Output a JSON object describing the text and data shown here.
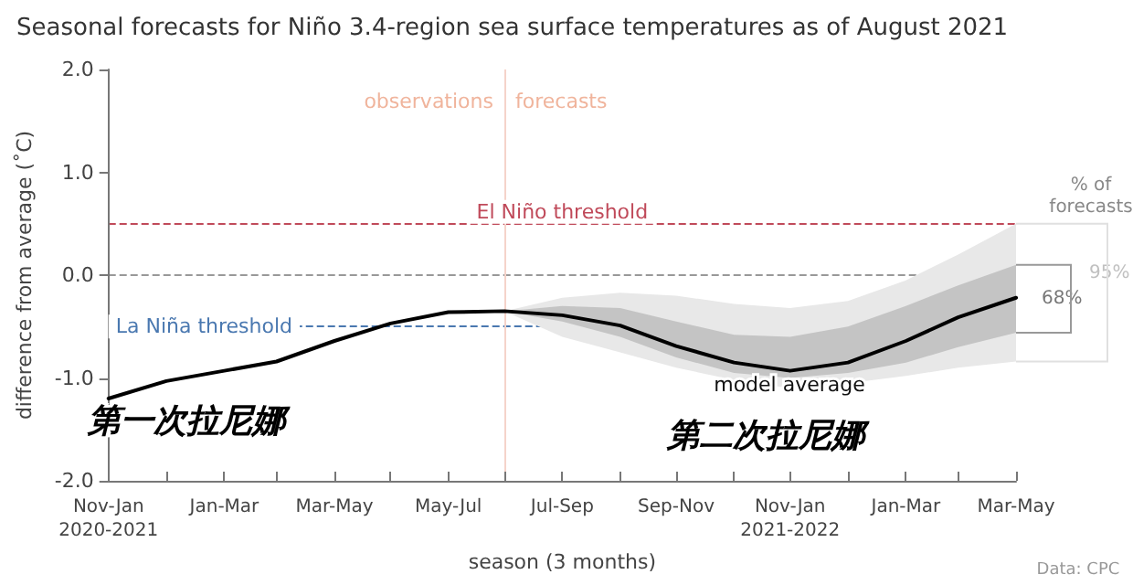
{
  "chart_data": {
    "type": "line",
    "title": "Seasonal forecasts for Niño 3.4-region sea surface temperatures as of August 2021",
    "xlabel": "season (3 months)",
    "ylabel": "difference from average (˚C)",
    "x": [
      "2020-12",
      "2021-01",
      "2021-02",
      "2021-03",
      "2021-04",
      "2021-05",
      "2021-06",
      "2021-07",
      "2021-08",
      "2021-09",
      "2021-10",
      "2021-11",
      "2021-12",
      "2022-01",
      "2022-02",
      "2022-03",
      "2022-04"
    ],
    "xlim": [
      "2020-12",
      "2022-04"
    ],
    "xticks": [
      {
        "value": "2020-12",
        "label": "Nov-Jan\n2020-2021"
      },
      {
        "value": "2021-01",
        "label": null
      },
      {
        "value": "2021-02",
        "label": "Jan-Mar"
      },
      {
        "value": "2021-03",
        "label": null
      },
      {
        "value": "2021-04",
        "label": "Mar-May"
      },
      {
        "value": "2021-05",
        "label": null
      },
      {
        "value": "2021-06",
        "label": "May-Jul"
      },
      {
        "value": "2021-07",
        "label": null
      },
      {
        "value": "2021-08",
        "label": "Jul-Sep"
      },
      {
        "value": "2021-09",
        "label": null
      },
      {
        "value": "2021-10",
        "label": "Sep-Nov"
      },
      {
        "value": "2021-11",
        "label": null
      },
      {
        "value": "2021-12",
        "label": "Nov-Jan\n2021-2022"
      },
      {
        "value": "2022-01",
        "label": null
      },
      {
        "value": "2022-02",
        "label": "Jan-Mar"
      },
      {
        "value": "2022-03",
        "label": null
      },
      {
        "value": "2022-04",
        "label": "Mar-May"
      }
    ],
    "ylim": [
      -2,
      2
    ],
    "yticks": [
      {
        "value": -2,
        "label": "-2.0"
      },
      {
        "value": -1,
        "label": "-1.0"
      },
      {
        "value": 0,
        "label": "0.0"
      },
      {
        "value": 1,
        "label": "1.0"
      },
      {
        "value": 2,
        "label": "2.0"
      }
    ],
    "marker": "none",
    "line_style": "solid",
    "series": [
      {
        "type": "area",
        "color": "#e8e8e8",
        "values": [
          null,
          null,
          null,
          null,
          null,
          null,
          null,
          null,
          null,
          null,
          null,
          null,
          null,
          null,
          null,
          null,
          null
        ],
        "lower": [
          null,
          null,
          null,
          null,
          null,
          null,
          null,
          -0.35,
          -0.6,
          -0.75,
          -0.9,
          -1.02,
          -1.1,
          -1.05,
          -0.98,
          -0.9,
          -0.84
        ],
        "upper": [
          null,
          null,
          null,
          null,
          null,
          null,
          null,
          -0.35,
          -0.22,
          -0.17,
          -0.2,
          -0.28,
          -0.32,
          -0.25,
          -0.05,
          0.2,
          0.5
        ]
      },
      {
        "type": "area",
        "color": "#c4c4c4",
        "values": [
          null,
          null,
          null,
          null,
          null,
          null,
          null,
          null,
          null,
          null,
          null,
          null,
          null,
          null,
          null,
          null,
          null
        ],
        "lower": [
          null,
          null,
          null,
          null,
          null,
          null,
          null,
          -0.35,
          -0.45,
          -0.6,
          -0.8,
          -0.95,
          -1.0,
          -0.95,
          -0.85,
          -0.7,
          -0.56
        ],
        "upper": [
          null,
          null,
          null,
          null,
          null,
          null,
          null,
          -0.35,
          -0.3,
          -0.32,
          -0.45,
          -0.58,
          -0.6,
          -0.5,
          -0.3,
          -0.1,
          0.1
        ]
      },
      {
        "color": "#000000",
        "values": [
          -1.2,
          -1.03,
          -0.93,
          -0.84,
          -0.64,
          -0.47,
          -0.36,
          -0.35,
          -0.39,
          -0.49,
          -0.69,
          -0.85,
          -0.93,
          -0.85,
          -0.64,
          -0.41,
          -0.22
        ]
      }
    ],
    "ref_lines": [
      {
        "axis": "y",
        "value": 0.5,
        "label": "El Niño threshold",
        "color": "#c04a5a",
        "line_style": "dashed"
      },
      {
        "axis": "y",
        "value": 0,
        "label": null,
        "color": "#999999",
        "line_style": "dashed"
      },
      {
        "axis": "y",
        "value": -0.5,
        "label": "La Niña threshold",
        "color": "#4a78b0",
        "line_style": "dashed"
      },
      {
        "axis": "x",
        "value": "2021-07",
        "label": null,
        "color": "#f5d3ca",
        "line_style": "solid"
      }
    ],
    "annotations": [
      {
        "text": "observations",
        "x": "2021-07",
        "y": 1.7
      },
      {
        "text": "forecasts",
        "x": "2021-07",
        "y": 1.7
      },
      "model average",
      "第一次拉尼娜",
      "第二次拉尼娜",
      "% of forecasts",
      "95%",
      "68%",
      "Data: CPC"
    ]
  }
}
